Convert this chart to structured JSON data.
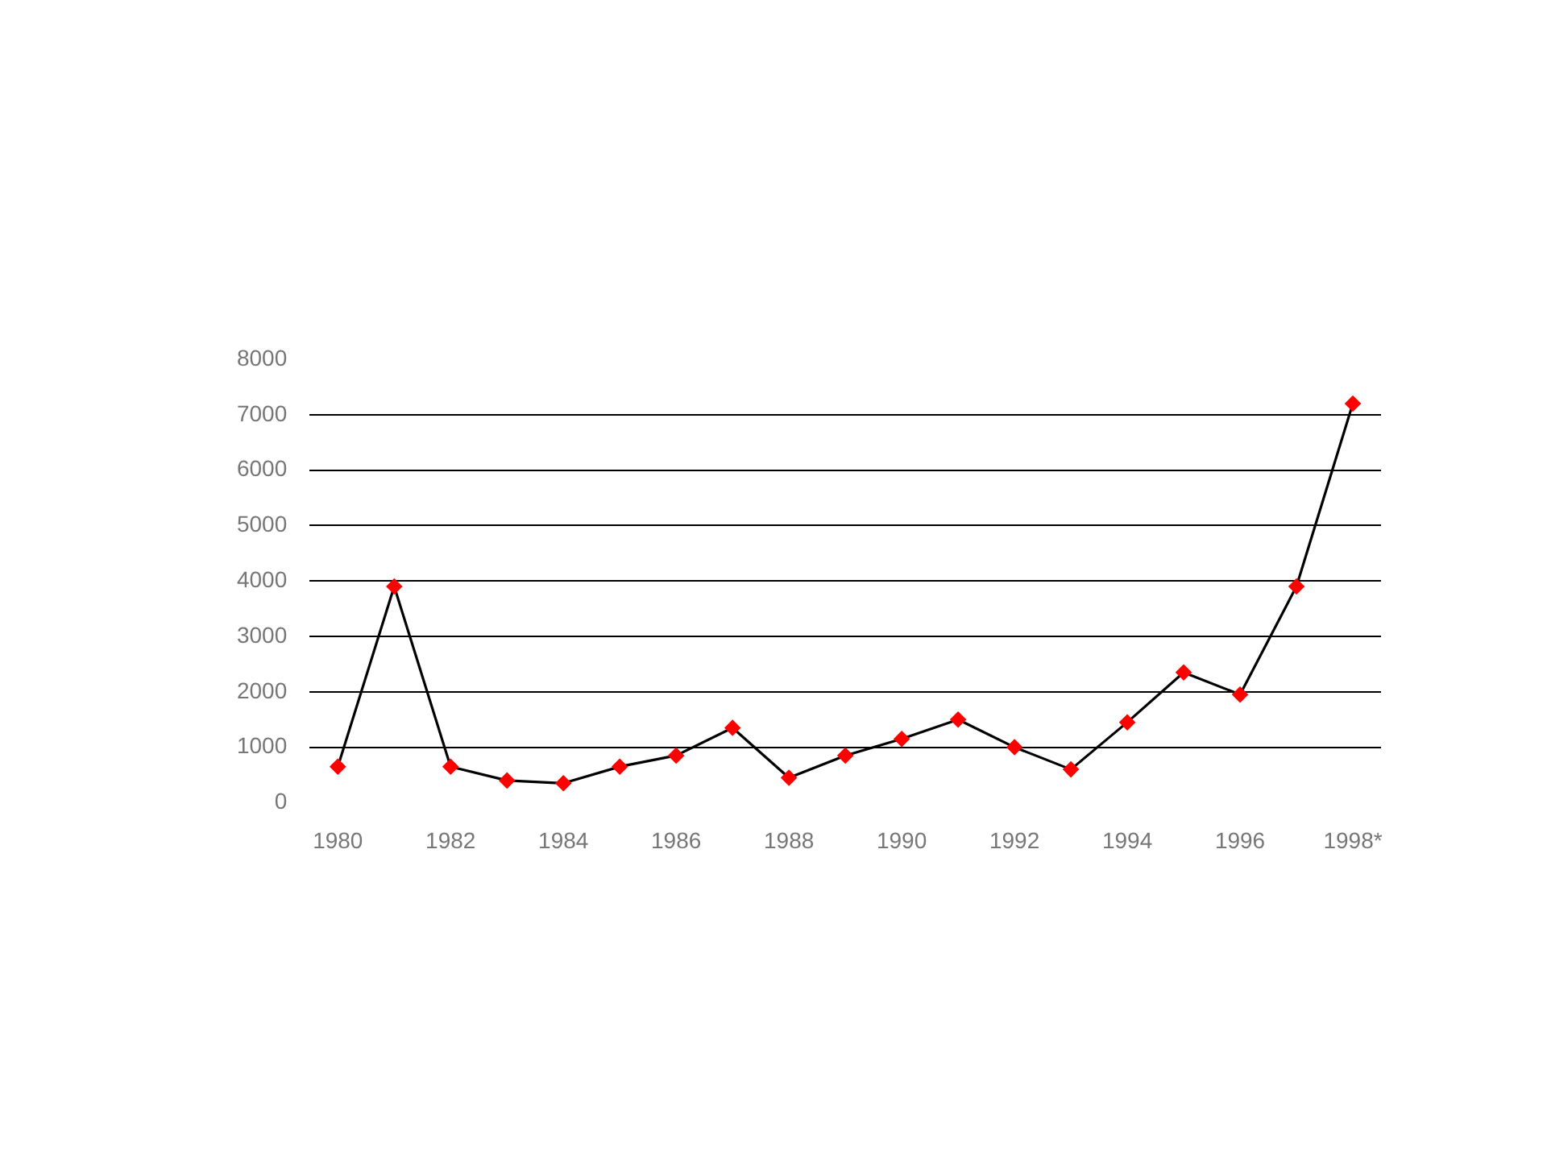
{
  "chart_data": {
    "type": "line",
    "categories": [
      "1980",
      null,
      "1982",
      null,
      "1984",
      null,
      "1986",
      null,
      "1988",
      null,
      "1990",
      null,
      "1992",
      null,
      "1994",
      null,
      "1996",
      null,
      "1998*"
    ],
    "series": [
      {
        "color": "#000000",
        "values": [
          650,
          3900,
          650,
          400,
          350,
          650,
          850,
          1350,
          450,
          850,
          1150,
          1500,
          1000,
          600,
          1450,
          2350,
          1950,
          3900,
          7200
        ]
      }
    ],
    "ylim": [
      0,
      8000
    ],
    "yticks": [
      0,
      1000,
      2000,
      3000,
      4000,
      5000,
      6000,
      7000,
      8000
    ],
    "grid": "y",
    "marker": "diamond",
    "line_style": "solid"
  }
}
